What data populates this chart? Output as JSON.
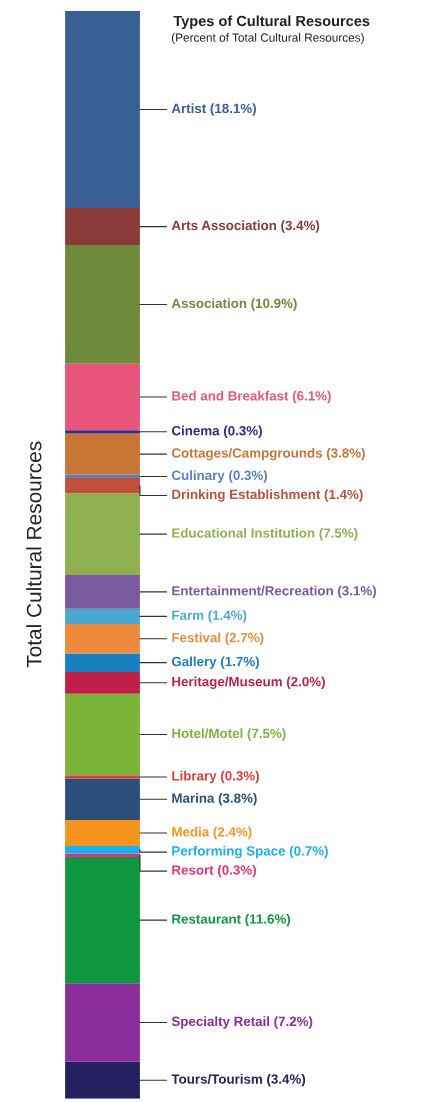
{
  "chart_data": {
    "type": "bar",
    "stacked": true,
    "title": "Types of Cultural Resources",
    "subtitle": "(Percent of Total Cultural Resources)",
    "ylabel": "Total Cultural Resources",
    "tick_labels": false,
    "categories": [
      null
    ],
    "ylim": [
      0,
      100
    ],
    "series": [
      {
        "color": "#252060",
        "values": [
          3.4
        ],
        "value_labels": [
          "Tours/Tourism (3.4%)"
        ]
      },
      {
        "color": "#8b2d9a",
        "values": [
          7.2
        ],
        "value_labels": [
          "Specialty Retail (7.2%)"
        ]
      },
      {
        "color": "#0f9640",
        "values": [
          11.6
        ],
        "value_labels": [
          "Restaurant (11.6%)"
        ]
      },
      {
        "color": "#e8307a",
        "values": [
          0.3
        ],
        "value_labels": [
          "Resort (0.3%)"
        ]
      },
      {
        "color": "#1ab0ef",
        "values": [
          0.7
        ],
        "value_labels": [
          "Performing Space (0.7%)"
        ]
      },
      {
        "color": "#f7941d",
        "values": [
          2.4
        ],
        "value_labels": [
          "Media (2.4%)"
        ]
      },
      {
        "color": "#2a4f7a",
        "values": [
          3.8
        ],
        "value_labels": [
          "Marina (3.8%)"
        ]
      },
      {
        "color": "#e03c3c",
        "values": [
          0.3
        ],
        "value_labels": [
          "Library (0.3%)"
        ]
      },
      {
        "color": "#7ab53a",
        "values": [
          7.5
        ],
        "value_labels": [
          "Hotel/Motel (7.5%)"
        ]
      },
      {
        "color": "#c02048",
        "values": [
          2.0
        ],
        "value_labels": [
          "Heritage/Museum (2.0%)"
        ]
      },
      {
        "color": "#1a7fbf",
        "values": [
          1.7
        ],
        "value_labels": [
          "Gallery (1.7%)"
        ]
      },
      {
        "color": "#ef8a3c",
        "values": [
          2.7
        ],
        "value_labels": [
          "Festival (2.7%)"
        ]
      },
      {
        "color": "#4aa8d0",
        "values": [
          1.4
        ],
        "value_labels": [
          "Farm (1.4%)"
        ]
      },
      {
        "color": "#7a5a9e",
        "values": [
          3.1
        ],
        "value_labels": [
          "Entertainment/Recreation (3.1%)"
        ]
      },
      {
        "color": "#8fb04e",
        "values": [
          7.5
        ],
        "value_labels": [
          "Educational Institution (7.5%)"
        ]
      },
      {
        "color": "#c0503a",
        "values": [
          1.4
        ],
        "value_labels": [
          "Drinking Establishment (1.4%)"
        ]
      },
      {
        "color": "#5b7fbf",
        "values": [
          0.3
        ],
        "value_labels": [
          "Culinary (0.3%)"
        ]
      },
      {
        "color": "#c87535",
        "values": [
          3.8
        ],
        "value_labels": [
          "Cottages/Campgrounds (3.8%)"
        ]
      },
      {
        "color": "#2e2e8a",
        "values": [
          0.3
        ],
        "value_labels": [
          "Cinema (0.3%)"
        ]
      },
      {
        "color": "#e8557a",
        "values": [
          6.1
        ],
        "value_labels": [
          "Bed and Breakfast (6.1%)"
        ]
      },
      {
        "color": "#6e8a3a",
        "values": [
          10.9
        ],
        "value_labels": [
          "Association (10.9%)"
        ]
      },
      {
        "color": "#8b3a3a",
        "values": [
          3.4
        ],
        "value_labels": [
          "Arts Association (3.4%)"
        ]
      },
      {
        "color": "#3a5f95",
        "values": [
          18.1
        ],
        "value_labels": [
          "Artist (18.1%)"
        ]
      }
    ]
  }
}
